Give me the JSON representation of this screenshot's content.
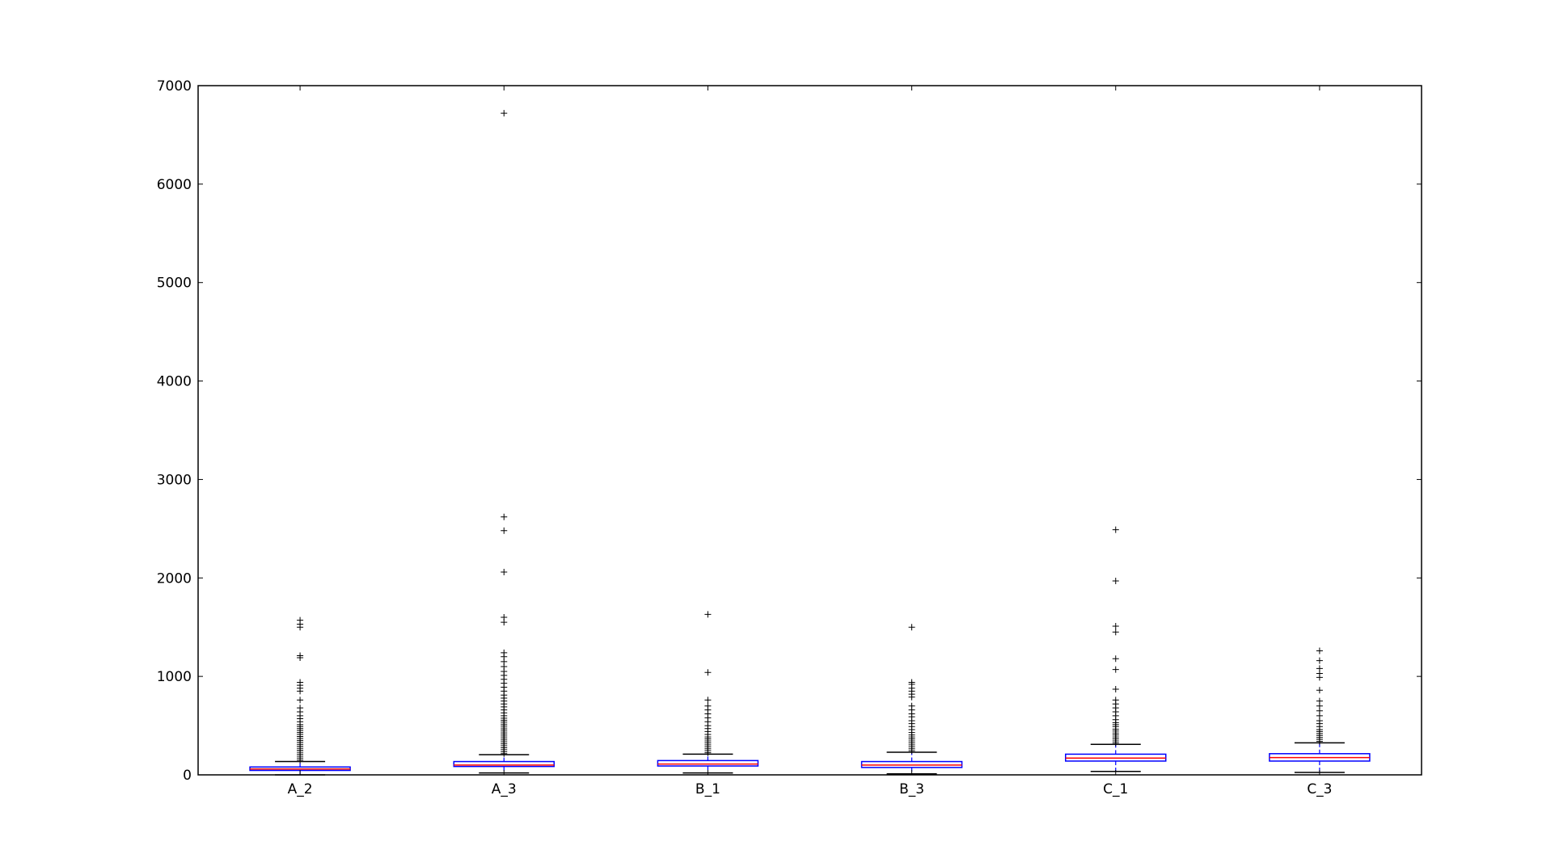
{
  "chart_data": {
    "type": "box",
    "title": "",
    "xlabel": "",
    "ylabel": "",
    "ylim": [
      0,
      7000
    ],
    "yticks": [
      0,
      1000,
      2000,
      3000,
      4000,
      5000,
      6000,
      7000
    ],
    "yticklabels": [
      "0",
      "1000",
      "2000",
      "3000",
      "4000",
      "5000",
      "6000",
      "7000"
    ],
    "grid": false,
    "colors": {
      "box": "#0000ff",
      "median": "#ff0000",
      "whisker": "#0000ff",
      "cap": "#000000",
      "flier": "#000000"
    },
    "categories": [
      "A_2",
      "A_3",
      "B_1",
      "B_3",
      "C_1",
      "C_3"
    ],
    "boxes": [
      {
        "label": "A_2",
        "whislo": 0,
        "q1": 45,
        "med": 60,
        "q3": 80,
        "whishi": 135,
        "fliers": [
          150,
          170,
          190,
          210,
          230,
          250,
          270,
          290,
          310,
          330,
          350,
          370,
          390,
          410,
          430,
          450,
          470,
          490,
          510,
          540,
          570,
          600,
          640,
          680,
          760,
          850,
          880,
          910,
          940,
          1190,
          1210,
          1500,
          1530,
          1570
        ]
      },
      {
        "label": "A_3",
        "whislo": 20,
        "q1": 85,
        "med": 100,
        "q3": 135,
        "whishi": 205,
        "fliers": [
          215,
          235,
          255,
          275,
          295,
          315,
          335,
          355,
          375,
          395,
          415,
          435,
          455,
          475,
          495,
          515,
          535,
          555,
          575,
          600,
          630,
          660,
          690,
          720,
          750,
          780,
          810,
          850,
          890,
          930,
          970,
          1010,
          1050,
          1100,
          1150,
          1200,
          1240,
          1550,
          1600,
          2060,
          2480,
          2620,
          6720
        ]
      },
      {
        "label": "B_1",
        "whislo": 20,
        "q1": 90,
        "med": 110,
        "q3": 145,
        "whishi": 210,
        "fliers": [
          225,
          245,
          265,
          285,
          305,
          325,
          345,
          365,
          385,
          410,
          440,
          470,
          500,
          540,
          580,
          620,
          660,
          700,
          760,
          1040,
          1630
        ]
      },
      {
        "label": "B_3",
        "whislo": 10,
        "q1": 75,
        "med": 100,
        "q3": 135,
        "whishi": 230,
        "fliers": [
          245,
          265,
          285,
          305,
          325,
          345,
          365,
          385,
          405,
          430,
          460,
          490,
          520,
          550,
          590,
          620,
          660,
          700,
          790,
          820,
          850,
          880,
          920,
          940,
          1500
        ]
      },
      {
        "label": "C_1",
        "whislo": 35,
        "q1": 140,
        "med": 170,
        "q3": 210,
        "whishi": 310,
        "fliers": [
          325,
          345,
          365,
          385,
          405,
          425,
          445,
          465,
          490,
          510,
          530,
          560,
          600,
          640,
          680,
          720,
          760,
          870,
          1070,
          1180,
          1450,
          1510,
          1970,
          2490
        ]
      },
      {
        "label": "C_3",
        "whislo": 25,
        "q1": 140,
        "med": 175,
        "q3": 215,
        "whishi": 325,
        "fliers": [
          340,
          360,
          380,
          400,
          420,
          440,
          460,
          490,
          520,
          550,
          600,
          650,
          700,
          750,
          860,
          990,
          1030,
          1080,
          1160,
          1260
        ]
      }
    ]
  }
}
